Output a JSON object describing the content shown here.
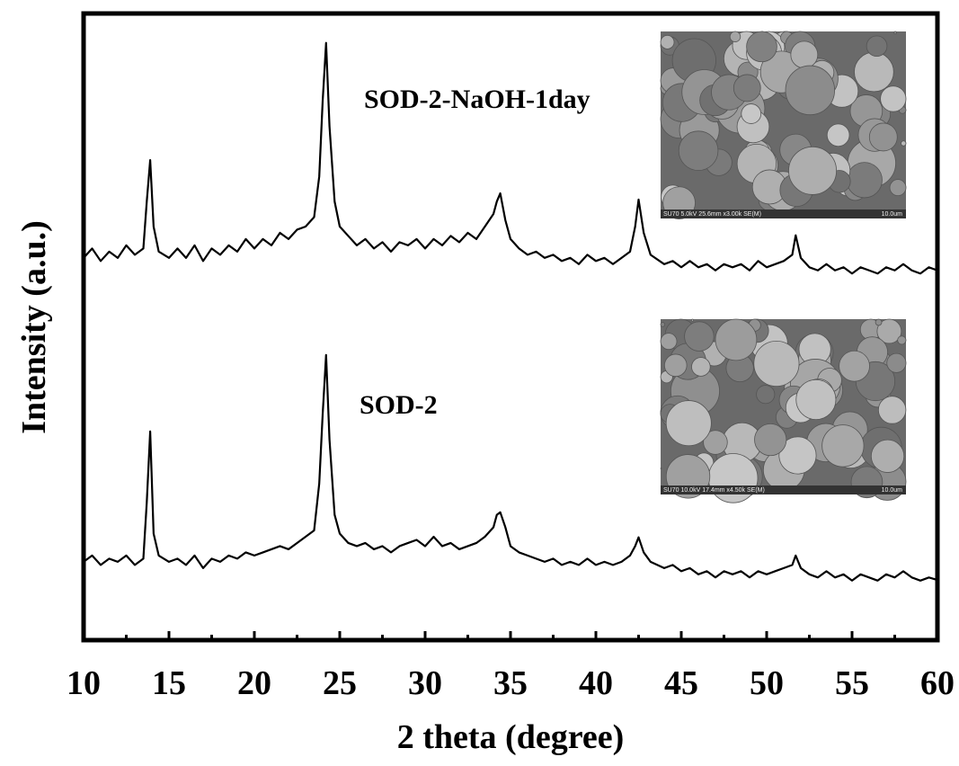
{
  "chart_data": {
    "type": "line",
    "x_label": "2 theta (degree)",
    "y_label": "Intensity (a.u.)",
    "xlim": [
      10,
      60
    ],
    "xticks": [
      10,
      15,
      20,
      25,
      30,
      35,
      40,
      45,
      50,
      55,
      60
    ],
    "x_minor_ticks": [
      12.5,
      17.5,
      22.5,
      27.5,
      32.5,
      37.5,
      42.5,
      47.5,
      52.5,
      57.5
    ],
    "ylim": [
      0,
      100
    ],
    "x": [
      10,
      10.5,
      11,
      11.5,
      12,
      12.5,
      13,
      13.5,
      13.7,
      13.9,
      14.1,
      14.4,
      15,
      15.5,
      16,
      16.5,
      17,
      17.5,
      18,
      18.5,
      19,
      19.5,
      20,
      20.5,
      21,
      21.5,
      22,
      22.5,
      23,
      23.5,
      23.8,
      24.0,
      24.2,
      24.4,
      24.7,
      25,
      25.5,
      26,
      26.5,
      27,
      27.5,
      28,
      28.5,
      29,
      29.5,
      30,
      30.5,
      31,
      31.5,
      32,
      32.5,
      33,
      33.5,
      34,
      34.2,
      34.4,
      34.7,
      35,
      35.5,
      36,
      36.5,
      37,
      37.5,
      38,
      38.5,
      39,
      39.5,
      40,
      40.5,
      41,
      41.5,
      42,
      42.3,
      42.5,
      42.8,
      43.2,
      44,
      44.5,
      45,
      45.5,
      46,
      46.5,
      47,
      47.5,
      48,
      48.5,
      49,
      49.5,
      50,
      50.5,
      51,
      51.5,
      51.7,
      52,
      52.5,
      53,
      53.5,
      54,
      54.5,
      55,
      55.5,
      56,
      56.5,
      57,
      57.5,
      58,
      58.5,
      59,
      59.5,
      60
    ],
    "series": [
      {
        "name": "SOD-2-NaOH-1day",
        "color": "#000000",
        "values": [
          61,
          62.5,
          60.5,
          62,
          61,
          63,
          61.5,
          62.5,
          70,
          76.6,
          66,
          62,
          61,
          62.5,
          61,
          63,
          60.5,
          62.5,
          61.5,
          63,
          62,
          64,
          62.5,
          64,
          63,
          65,
          64,
          65.5,
          66,
          67.5,
          74,
          86,
          95.3,
          82,
          70,
          66,
          64.5,
          63,
          64,
          62.5,
          63.5,
          62,
          63.5,
          63,
          64,
          62.5,
          64,
          63,
          64.5,
          63.5,
          65,
          64,
          66,
          68,
          70,
          71.3,
          67,
          64,
          62.5,
          61.5,
          62,
          61,
          61.5,
          60.5,
          61,
          60,
          61.5,
          60.5,
          61,
          60,
          61,
          62,
          66,
          70.3,
          65,
          61.5,
          60,
          60.5,
          59.5,
          60.5,
          59.5,
          60,
          59,
          60,
          59.5,
          60,
          59,
          60.5,
          59.5,
          60,
          60.5,
          61.5,
          64.6,
          61,
          59.5,
          59,
          60,
          59,
          59.5,
          58.5,
          59.5,
          59,
          58.5,
          59.5,
          59,
          60,
          59,
          58.5,
          59.5,
          59
        ]
      },
      {
        "name": "SOD-2",
        "color": "#000000",
        "values": [
          12.5,
          13.5,
          12,
          13,
          12.5,
          13.5,
          12,
          13,
          22,
          33.3,
          17,
          13.5,
          12.5,
          13,
          12,
          13.5,
          11.5,
          13,
          12.5,
          13.5,
          13,
          14,
          13.5,
          14,
          14.5,
          15,
          14.5,
          15.5,
          16.5,
          17.5,
          25,
          36,
          45.5,
          32,
          20,
          17,
          15.5,
          15,
          15.5,
          14.5,
          15,
          14,
          15,
          15.5,
          16,
          15,
          16.5,
          15,
          15.5,
          14.5,
          15,
          15.5,
          16.5,
          18,
          20,
          20.4,
          18,
          15,
          14,
          13.5,
          13,
          12.5,
          13,
          12,
          12.5,
          12,
          13,
          12,
          12.5,
          12,
          12.5,
          13.5,
          15,
          16.4,
          14,
          12.5,
          11.5,
          12,
          11,
          11.5,
          10.5,
          11,
          10,
          11,
          10.5,
          11,
          10,
          11,
          10.5,
          11,
          11.5,
          12,
          13.5,
          11.5,
          10.5,
          10,
          11,
          10,
          10.5,
          9.5,
          10.5,
          10,
          9.5,
          10.5,
          10,
          11,
          10,
          9.5,
          10,
          9.6
        ]
      }
    ],
    "insets": [
      {
        "caption": "SU70 5.0kV 25.6mm x3.00k SE(M)",
        "scale": "10.0um"
      },
      {
        "caption": "SU70 10.0kV 17.4mm x4.50k SE(M)",
        "scale": "10.0um"
      }
    ]
  }
}
